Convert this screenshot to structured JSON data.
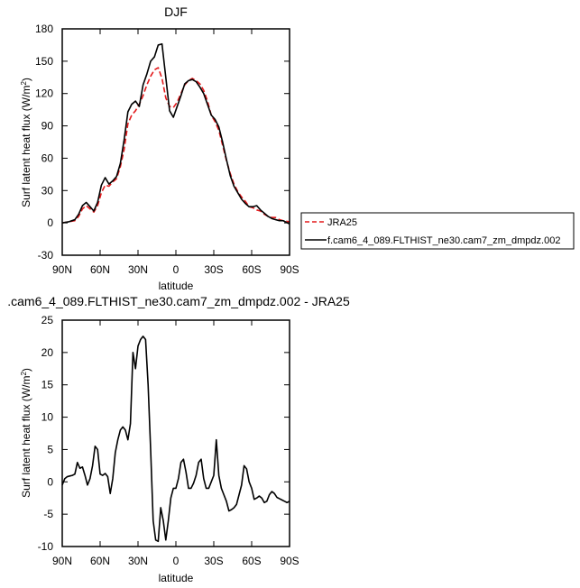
{
  "chart_data": [
    {
      "type": "line",
      "title": "DJF",
      "xlabel": "latitude",
      "ylabel": "Surf latent heat flux (W/m²)",
      "xlim": [
        90,
        -90
      ],
      "ylim": [
        -30,
        180
      ],
      "xticks": [
        90,
        60,
        30,
        0,
        -30,
        -60,
        -90
      ],
      "xtick_labels": [
        "90N",
        "60N",
        "30N",
        "0",
        "30S",
        "60S",
        "90S"
      ],
      "yticks": [
        -30,
        0,
        30,
        60,
        90,
        120,
        150,
        180
      ],
      "ytick_labels": [
        "-30",
        "0",
        "30",
        "60",
        "90",
        "120",
        "150",
        "180"
      ],
      "legend_position": "right",
      "series": [
        {
          "name": "JRA25",
          "color": "#e31a1c",
          "dash": "dashed",
          "x": [
            90,
            85,
            80,
            77,
            74,
            71,
            68,
            65,
            62,
            59,
            56,
            53,
            50,
            47,
            44,
            41,
            38,
            35,
            32,
            29,
            26,
            23,
            20,
            17,
            14,
            11,
            8,
            5,
            2,
            -1,
            -4,
            -7,
            -10,
            -13,
            -16,
            -19,
            -22,
            -25,
            -28,
            -31,
            -34,
            -37,
            -40,
            -43,
            -46,
            -49,
            -52,
            -55,
            -58,
            -61,
            -64,
            -67,
            -70,
            -73,
            -76,
            -79,
            -82,
            -85,
            -90
          ],
          "y": [
            0,
            1,
            2,
            6,
            13,
            16,
            13,
            10,
            16,
            28,
            35,
            34,
            38,
            41,
            52,
            68,
            92,
            100,
            104,
            110,
            118,
            128,
            136,
            142,
            144,
            134,
            116,
            108,
            107,
            112,
            120,
            128,
            132,
            134,
            132,
            129,
            123,
            113,
            100,
            94,
            86,
            72,
            58,
            46,
            36,
            29,
            24,
            20,
            15,
            14,
            12,
            11,
            8,
            6,
            5,
            5,
            3,
            2,
            1
          ]
        },
        {
          "name": "f.cam6_4_089.FLTHIST_ne30.cam7_zm_dmpdz.002",
          "color": "#000000",
          "dash": "solid",
          "x": [
            90,
            85,
            80,
            77,
            74,
            71,
            68,
            65,
            62,
            59,
            56,
            53,
            50,
            47,
            44,
            41,
            38,
            35,
            32,
            29,
            26,
            23,
            20,
            17,
            14,
            11,
            8,
            5,
            2,
            -1,
            -4,
            -7,
            -10,
            -13,
            -16,
            -19,
            -22,
            -25,
            -28,
            -31,
            -34,
            -37,
            -40,
            -43,
            -46,
            -49,
            -52,
            -55,
            -58,
            -61,
            -64,
            -67,
            -70,
            -73,
            -76,
            -79,
            -82,
            -85,
            -90
          ],
          "y": [
            0,
            1,
            3,
            8,
            16,
            19,
            15,
            11,
            19,
            35,
            42,
            36,
            39,
            43,
            55,
            77,
            103,
            110,
            113,
            108,
            128,
            138,
            150,
            154,
            165,
            166,
            135,
            104,
            98,
            108,
            118,
            129,
            132,
            133,
            131,
            126,
            120,
            110,
            100,
            96,
            89,
            75,
            59,
            44,
            34,
            28,
            22,
            18,
            15,
            15,
            16,
            12,
            9,
            6,
            4,
            3,
            2,
            2,
            -1
          ]
        }
      ]
    },
    {
      "type": "line",
      "title": ".cam6_4_089.FLTHIST_ne30.cam7_zm_dmpdz.002 - JRA25",
      "xlabel": "latitude",
      "ylabel": "Surf latent heat flux (W/m²)",
      "xlim": [
        90,
        -90
      ],
      "ylim": [
        -10,
        25
      ],
      "xticks": [
        90,
        60,
        30,
        0,
        -30,
        -60,
        -90
      ],
      "xtick_labels": [
        "90N",
        "60N",
        "30N",
        "0",
        "30S",
        "60S",
        "90S"
      ],
      "yticks": [
        -10,
        -5,
        0,
        5,
        10,
        15,
        20,
        25
      ],
      "ytick_labels": [
        "-10",
        "-5",
        "0",
        "5",
        "10",
        "15",
        "20",
        "25"
      ],
      "series": [
        {
          "color": "#000000",
          "dash": "solid",
          "x": [
            90,
            88,
            86,
            84,
            82,
            80,
            78,
            76,
            74,
            72,
            70,
            68,
            66,
            64,
            62,
            60,
            58,
            56,
            54,
            52,
            50,
            48,
            46,
            44,
            42,
            40,
            38,
            36,
            34,
            32,
            30,
            28,
            26,
            24,
            22,
            20,
            18,
            16,
            14,
            12,
            10,
            8,
            6,
            4,
            2,
            0,
            -2,
            -4,
            -6,
            -8,
            -10,
            -12,
            -14,
            -16,
            -18,
            -20,
            -22,
            -24,
            -26,
            -28,
            -30,
            -32,
            -34,
            -36,
            -38,
            -40,
            -42,
            -44,
            -46,
            -48,
            -50,
            -52,
            -54,
            -56,
            -58,
            -60,
            -62,
            -64,
            -66,
            -68,
            -70,
            -72,
            -74,
            -76,
            -78,
            -80,
            -82,
            -84,
            -86,
            -88,
            -90
          ],
          "y": [
            -0.5,
            0.5,
            0.8,
            0.9,
            1.0,
            1.2,
            3.0,
            2.1,
            2.3,
            1.0,
            -0.5,
            0.5,
            2.5,
            5.5,
            5.0,
            1.2,
            1.0,
            1.3,
            0.8,
            -1.8,
            0.5,
            4.5,
            6.5,
            8.0,
            8.5,
            8.0,
            6.5,
            9.0,
            20.0,
            17.5,
            21.0,
            22.0,
            22.5,
            22.0,
            15.0,
            5.0,
            -6.0,
            -9.0,
            -9.2,
            -4.0,
            -6.0,
            -9.0,
            -6.0,
            -2.5,
            -1.0,
            -1.0,
            0.5,
            3.0,
            3.5,
            1.5,
            -1.0,
            -1.0,
            -0.2,
            1.0,
            3.0,
            3.5,
            0.5,
            -1.0,
            -1.0,
            0.0,
            1.0,
            6.5,
            1.0,
            -1.0,
            -2.0,
            -3.0,
            -4.5,
            -4.3,
            -4.0,
            -3.5,
            -2.0,
            -0.5,
            2.5,
            2.0,
            0.0,
            -1.0,
            -2.7,
            -2.5,
            -2.2,
            -2.5,
            -3.2,
            -3.0,
            -2.0,
            -1.5,
            -1.8,
            -2.4,
            -2.6,
            -2.8,
            -3.0,
            -3.2,
            -3.0
          ]
        }
      ]
    }
  ]
}
